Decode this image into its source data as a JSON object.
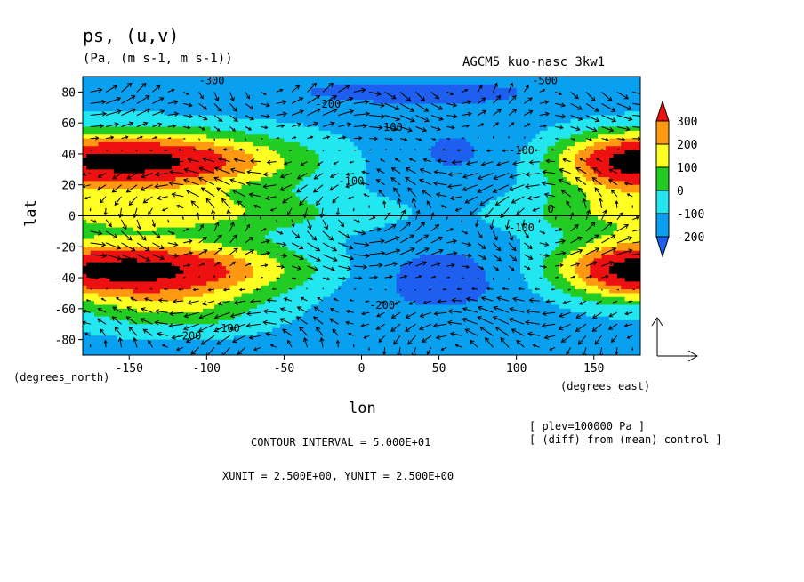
{
  "header": {
    "title": "ps, (u,v)",
    "units": "(Pa, (m s-1, m s-1))",
    "model": "AGCM5_kuo-nasc_3kw1"
  },
  "footer": {
    "contour_interval": "CONTOUR INTERVAL = 5.000E+01",
    "units_line": "XUNIT = 2.500E+00, YUNIT = 2.500E+00",
    "plev": "[ plev=100000 Pa ]",
    "diff": "[ (diff) from (mean) control ]"
  },
  "colors": {
    "lt_-200": "#1e5ff0",
    "-200_-100": "#0aa0f0",
    "-100_0": "#22e6f0",
    "0_100": "#22cc22",
    "100_200": "#ffff22",
    "200_300": "#ff9911",
    "gt_300": "#ee1111",
    "extreme": "#000000"
  },
  "chart_data": {
    "type": "heatmap",
    "title": "ps, (u,v)",
    "xlabel": "lon",
    "ylabel": "lat",
    "x_unit_label": "(degrees_east)",
    "y_unit_label": "(degrees_north)",
    "xlim": [
      -180,
      180
    ],
    "ylim": [
      -90,
      90
    ],
    "x_ticks": [
      -150,
      -100,
      -50,
      0,
      50,
      100,
      150
    ],
    "y_ticks": [
      -80,
      -60,
      -40,
      -20,
      0,
      20,
      40,
      60,
      80
    ],
    "x_tick_labels": [
      "-150",
      "-100",
      "-50",
      "0",
      "50",
      "100",
      "150"
    ],
    "y_tick_labels": [
      "-80",
      "-60",
      "-40",
      "-20",
      "0",
      "20",
      "40",
      "60",
      "80"
    ],
    "colorbar": {
      "levels": [
        -200,
        -100,
        0,
        100,
        200,
        300
      ],
      "labels": [
        "-200",
        "-100",
        "0",
        "100",
        "200",
        "300"
      ],
      "extend": "both"
    },
    "contour_labels": [
      {
        "text": "-300",
        "lon": -105,
        "lat": 85
      },
      {
        "text": "-200",
        "lon": -30,
        "lat": 70
      },
      {
        "text": "-100",
        "lon": 10,
        "lat": 55
      },
      {
        "text": "-100",
        "lon": 95,
        "lat": 40
      },
      {
        "text": "-500",
        "lon": 110,
        "lat": 85
      },
      {
        "text": "-100",
        "lon": 95,
        "lat": -10
      },
      {
        "text": "0",
        "lon": 120,
        "lat": 2
      },
      {
        "text": "-200",
        "lon": 5,
        "lat": -60
      },
      {
        "text": "-100",
        "lon": -95,
        "lat": -75
      },
      {
        "text": "-200",
        "lon": -120,
        "lat": -80
      },
      {
        "text": "-100",
        "lon": -15,
        "lat": 20
      }
    ],
    "vector_reference": {
      "u": 2.5,
      "v": 2.5
    }
  }
}
